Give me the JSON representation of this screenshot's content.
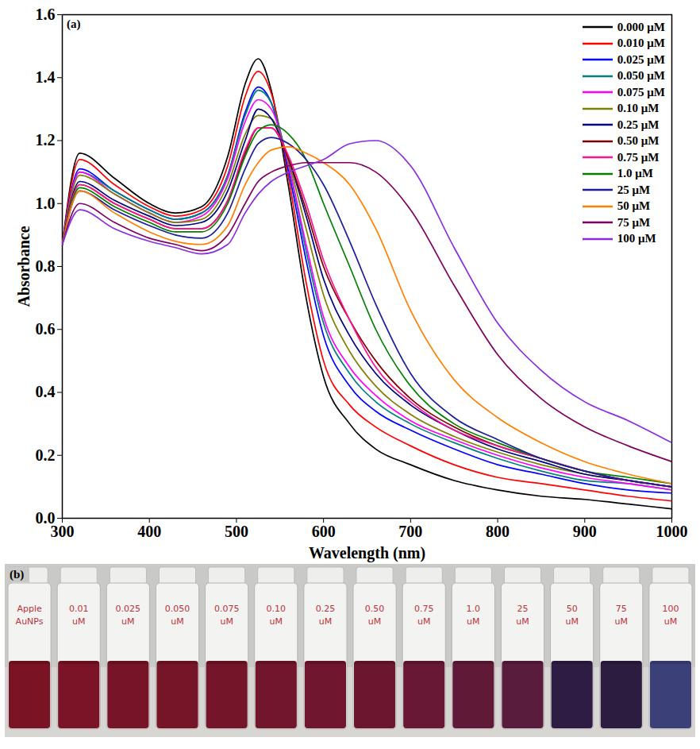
{
  "chart_data": {
    "type": "line",
    "annotations": [
      "(a)"
    ],
    "x_label": "Wavelength (nm)",
    "y_label": "Absorbance",
    "xlim": [
      300,
      1000
    ],
    "xticks": [
      300,
      400,
      500,
      600,
      700,
      800,
      900,
      1000
    ],
    "ylim": [
      0,
      1.6
    ],
    "yticks": [
      {
        "value": 0,
        "label": "0.0"
      },
      {
        "value": 0.2,
        "label": "0.2"
      },
      {
        "value": 0.4,
        "label": "0.4"
      },
      {
        "value": 0.6,
        "label": "0.6"
      },
      {
        "value": 0.8,
        "label": "0.8"
      },
      {
        "value": 1.0,
        "label": "1.0"
      },
      {
        "value": 1.2,
        "label": "1.2"
      },
      {
        "value": 1.4,
        "label": "1.4"
      },
      {
        "value": 1.6,
        "label": "1.6"
      }
    ],
    "grid": false,
    "legend": "upper right",
    "x": [
      300,
      320,
      360,
      400,
      430,
      460,
      490,
      510,
      525,
      540,
      560,
      580,
      600,
      630,
      660,
      700,
      750,
      800,
      850,
      900,
      950,
      1000
    ],
    "series": [
      {
        "name": "0.000 μM",
        "color": "#000000",
        "values": [
          0.87,
          1.16,
          1.08,
          1.0,
          0.97,
          0.99,
          1.15,
          1.38,
          1.46,
          1.36,
          1.05,
          0.7,
          0.45,
          0.3,
          0.22,
          0.17,
          0.12,
          0.09,
          0.07,
          0.06,
          0.045,
          0.03
        ]
      },
      {
        "name": "0.010 μM",
        "color": "#ff0000",
        "values": [
          0.87,
          1.14,
          1.06,
          0.99,
          0.96,
          0.98,
          1.12,
          1.34,
          1.42,
          1.35,
          1.08,
          0.75,
          0.5,
          0.36,
          0.29,
          0.23,
          0.17,
          0.13,
          0.11,
          0.09,
          0.07,
          0.055
        ]
      },
      {
        "name": "0.025 μM",
        "color": "#0000ff",
        "values": [
          0.87,
          1.11,
          1.04,
          0.98,
          0.95,
          0.97,
          1.09,
          1.29,
          1.37,
          1.32,
          1.1,
          0.82,
          0.58,
          0.42,
          0.34,
          0.28,
          0.22,
          0.17,
          0.14,
          0.11,
          0.09,
          0.08
        ]
      },
      {
        "name": "0.050 μM",
        "color": "#008080",
        "values": [
          0.87,
          1.1,
          1.04,
          0.98,
          0.95,
          0.97,
          1.09,
          1.28,
          1.36,
          1.32,
          1.12,
          0.85,
          0.62,
          0.46,
          0.37,
          0.3,
          0.24,
          0.19,
          0.15,
          0.12,
          0.11,
          0.09
        ]
      },
      {
        "name": "0.075 μM",
        "color": "#ff00ff",
        "values": [
          0.87,
          1.1,
          1.03,
          0.97,
          0.94,
          0.96,
          1.08,
          1.26,
          1.33,
          1.3,
          1.12,
          0.87,
          0.64,
          0.48,
          0.39,
          0.31,
          0.25,
          0.2,
          0.16,
          0.13,
          0.11,
          0.09
        ]
      },
      {
        "name": "0.10 μM",
        "color": "#808000",
        "values": [
          0.87,
          1.09,
          1.03,
          0.97,
          0.94,
          0.95,
          1.06,
          1.22,
          1.28,
          1.27,
          1.13,
          0.92,
          0.71,
          0.53,
          0.42,
          0.33,
          0.26,
          0.21,
          0.17,
          0.14,
          0.12,
          0.1
        ]
      },
      {
        "name": "0.25 μM",
        "color": "#000080",
        "values": [
          0.87,
          1.07,
          1.01,
          0.96,
          0.93,
          0.94,
          1.04,
          1.2,
          1.3,
          1.27,
          1.14,
          0.96,
          0.76,
          0.58,
          0.46,
          0.36,
          0.28,
          0.22,
          0.18,
          0.14,
          0.12,
          0.1
        ]
      },
      {
        "name": "0.50 μM",
        "color": "#800000",
        "values": [
          0.87,
          1.06,
          1.0,
          0.95,
          0.92,
          0.92,
          1.01,
          1.16,
          1.24,
          1.24,
          1.14,
          0.98,
          0.8,
          0.63,
          0.5,
          0.38,
          0.29,
          0.23,
          0.19,
          0.15,
          0.12,
          0.1
        ]
      },
      {
        "name": "0.75 μM",
        "color": "#ff1493",
        "values": [
          0.87,
          1.06,
          1.0,
          0.95,
          0.92,
          0.92,
          1.01,
          1.17,
          1.24,
          1.24,
          1.15,
          1.0,
          0.82,
          0.63,
          0.48,
          0.37,
          0.28,
          0.23,
          0.19,
          0.15,
          0.12,
          0.1
        ]
      },
      {
        "name": "1.0 μM",
        "color": "#008000",
        "values": [
          0.87,
          1.05,
          0.99,
          0.94,
          0.91,
          0.91,
          1.0,
          1.15,
          1.23,
          1.25,
          1.22,
          1.14,
          1.0,
          0.8,
          0.6,
          0.42,
          0.3,
          0.24,
          0.19,
          0.15,
          0.13,
          0.11
        ]
      },
      {
        "name": "25 μM",
        "color": "#1c1c9c",
        "values": [
          0.87,
          1.04,
          0.98,
          0.93,
          0.9,
          0.89,
          0.97,
          1.11,
          1.19,
          1.21,
          1.19,
          1.14,
          1.06,
          0.88,
          0.68,
          0.46,
          0.32,
          0.25,
          0.19,
          0.15,
          0.12,
          0.1
        ]
      },
      {
        "name": "50 μM",
        "color": "#ff8000",
        "values": [
          0.87,
          1.04,
          0.97,
          0.91,
          0.88,
          0.87,
          0.93,
          1.06,
          1.13,
          1.17,
          1.18,
          1.16,
          1.13,
          1.06,
          0.92,
          0.66,
          0.44,
          0.32,
          0.24,
          0.18,
          0.14,
          0.11
        ]
      },
      {
        "name": "75 μM",
        "color": "#800060",
        "values": [
          0.87,
          1.0,
          0.94,
          0.89,
          0.87,
          0.85,
          0.9,
          1.0,
          1.07,
          1.1,
          1.12,
          1.13,
          1.13,
          1.13,
          1.1,
          0.98,
          0.74,
          0.52,
          0.38,
          0.29,
          0.23,
          0.18
        ]
      },
      {
        "name": "100 μM",
        "color": "#8a2be2",
        "values": [
          0.87,
          0.98,
          0.92,
          0.88,
          0.86,
          0.84,
          0.87,
          0.97,
          1.03,
          1.07,
          1.1,
          1.12,
          1.14,
          1.19,
          1.2,
          1.12,
          0.86,
          0.62,
          0.47,
          0.37,
          0.31,
          0.24
        ]
      }
    ]
  },
  "photo_panel": {
    "label": "(b)",
    "label_color": "#b8323c",
    "vials": [
      {
        "label": "Apple AuNPs",
        "color": "#7a1424"
      },
      {
        "label": "0.01 uM",
        "color": "#7a1426"
      },
      {
        "label": "0.025 uM",
        "color": "#781427"
      },
      {
        "label": "0.050 uM",
        "color": "#761528"
      },
      {
        "label": "0.075 uM",
        "color": "#74152a"
      },
      {
        "label": "0.10 uM",
        "color": "#72162c"
      },
      {
        "label": "0.25 uM",
        "color": "#70162e"
      },
      {
        "label": "0.50 uM",
        "color": "#6c1730"
      },
      {
        "label": "0.75 uM",
        "color": "#681834"
      },
      {
        "label": "1.0 uM",
        "color": "#601a38"
      },
      {
        "label": "25 uM",
        "color": "#5a1c3c"
      },
      {
        "label": "50 uM",
        "color": "#2e1c44"
      },
      {
        "label": "75 uM",
        "color": "#2c1c40"
      },
      {
        "label": "100 uM",
        "color": "#3c4078"
      }
    ]
  }
}
